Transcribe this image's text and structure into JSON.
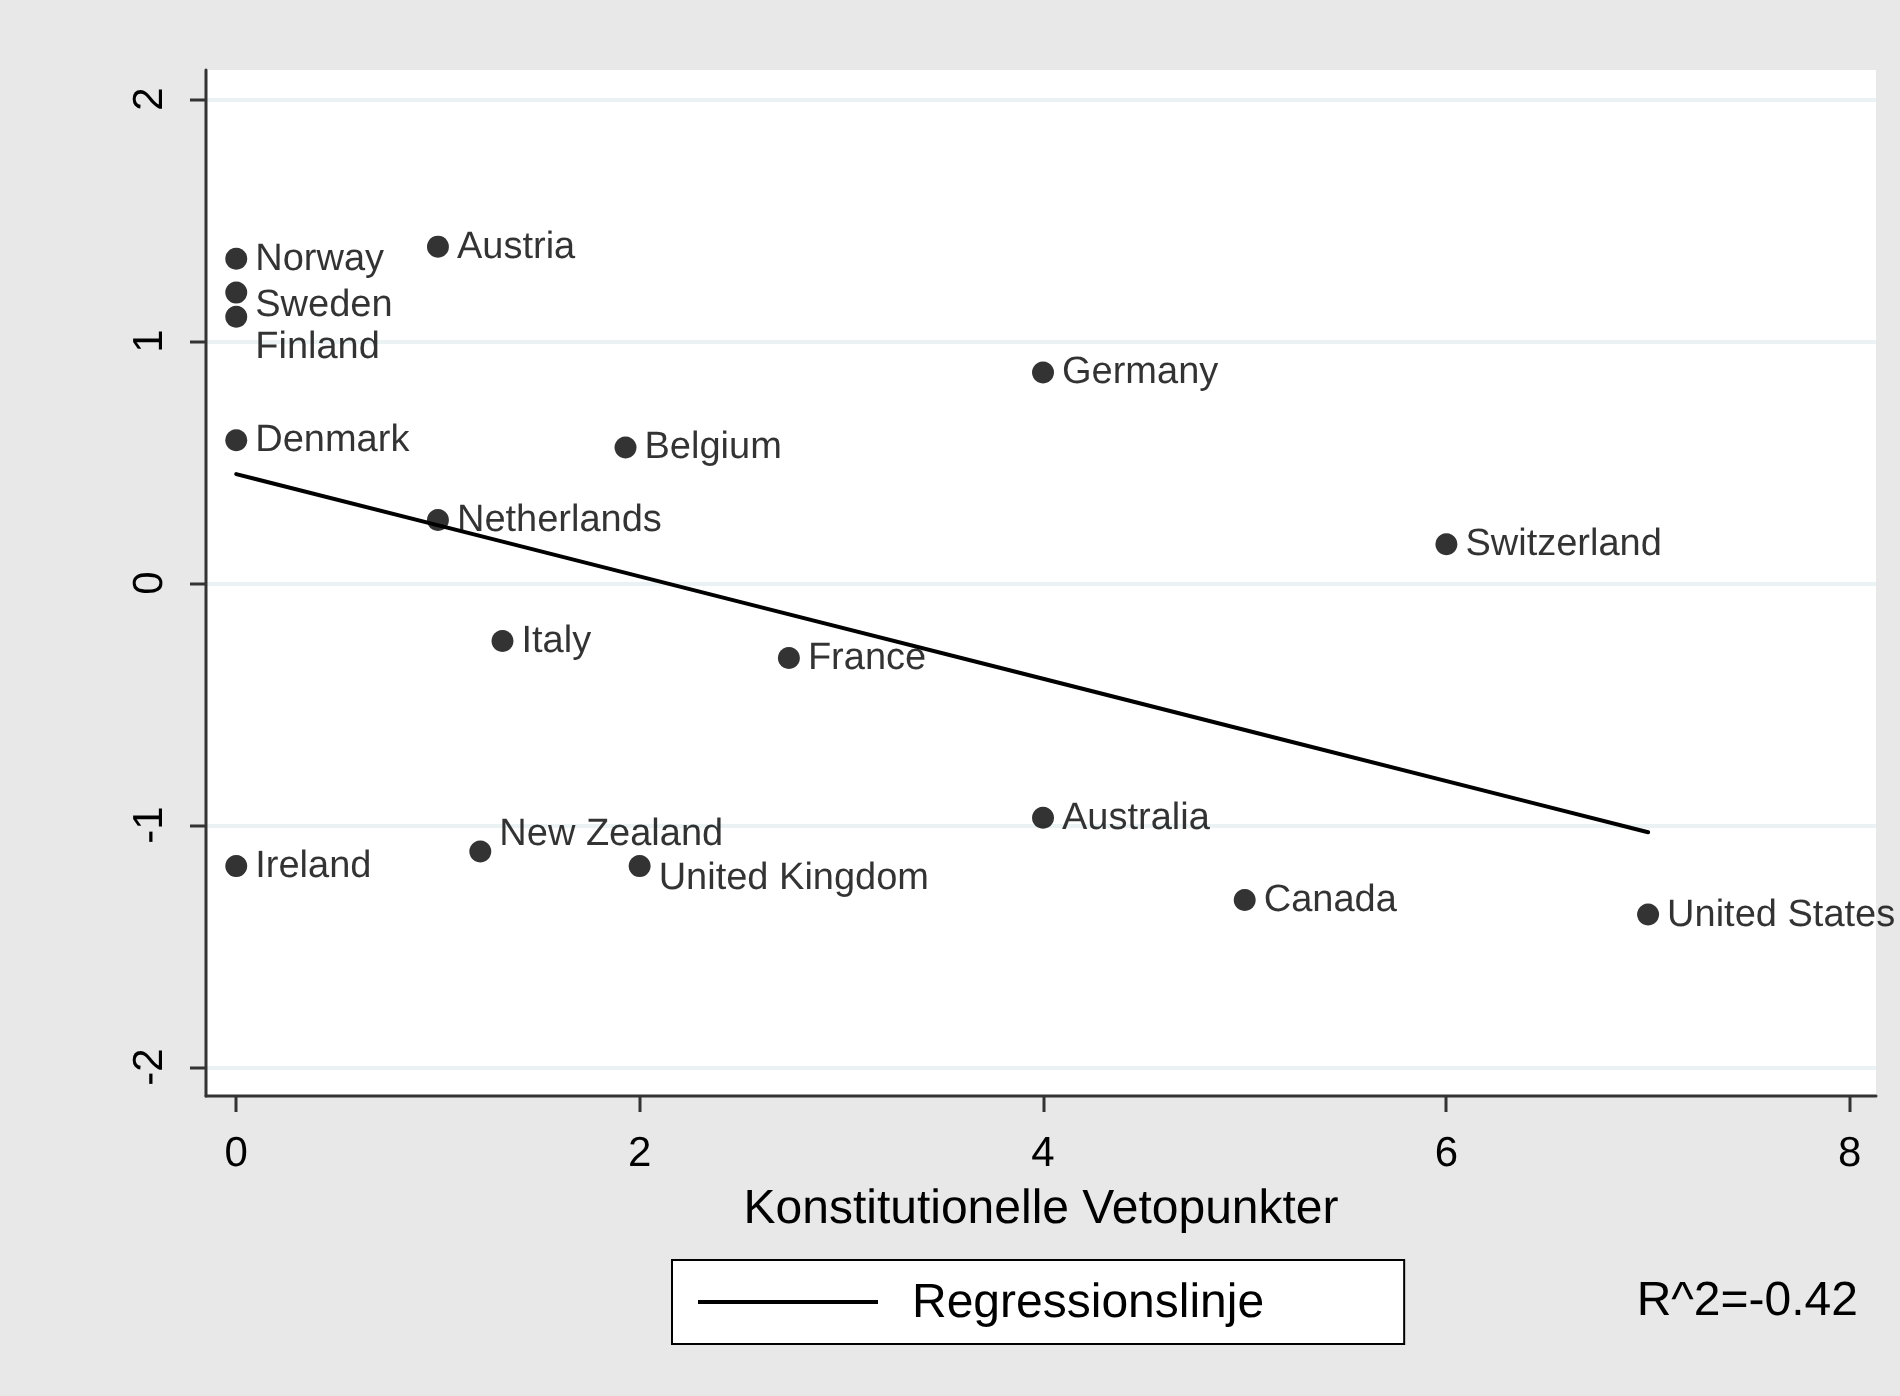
{
  "chart_data": {
    "type": "scatter",
    "xlabel": "Konstitutionelle Vetopunkter",
    "xlim": [
      -0.15,
      8.13
    ],
    "xticks": [
      0,
      2,
      4,
      6,
      8
    ],
    "ylim": [
      -2.12,
      2.12
    ],
    "yticks": [
      -2,
      -1,
      0,
      1,
      2
    ],
    "grid": "y",
    "legend": "bottom",
    "marker": "circle",
    "series": [
      {
        "color": "#000000",
        "x": [
          0,
          0,
          0,
          1,
          0,
          1,
          1.93,
          4,
          2.74,
          6,
          1.32,
          0,
          1.21,
          2,
          4,
          5,
          7
        ],
        "values": [
          1.34,
          1.2,
          1.1,
          1.39,
          0.59,
          0.26,
          0.56,
          0.87,
          -0.31,
          0.16,
          -0.24,
          -1.17,
          -1.11,
          -1.17,
          -0.97,
          -1.31,
          -1.37
        ],
        "value_labels": [
          "Norway",
          "Sweden",
          "Finland",
          "Austria",
          "Denmark",
          "Netherlands",
          "Belgium",
          "Germany",
          "France",
          "Switzerland",
          "Italy",
          "Ireland",
          "New Zealand",
          "United Kingdom",
          "Australia",
          "Canada",
          "United States"
        ]
      },
      {
        "type": "line",
        "name": "Regressionslinje",
        "color": "#000000",
        "x": [
          0,
          7
        ],
        "values": [
          0.45,
          -1.03
        ],
        "marker": "none",
        "line_style": "solid"
      }
    ],
    "annotations": [
      "R^2=-0.42"
    ]
  }
}
